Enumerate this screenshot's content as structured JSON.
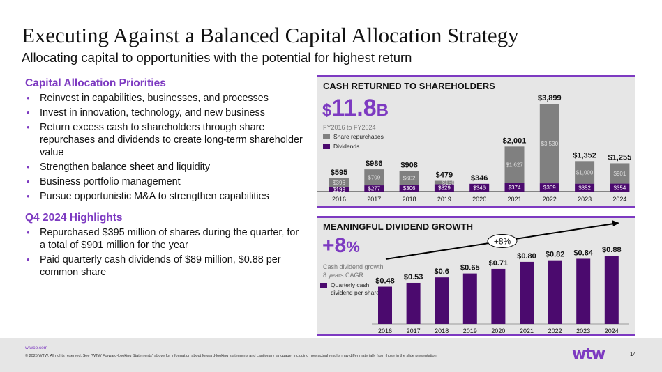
{
  "header": {
    "title": "Executing Against a Balanced Capital Allocation Strategy",
    "subtitle": "Allocating capital to opportunities with the potential for highest return"
  },
  "priorities": {
    "heading": "Capital Allocation Priorities",
    "items": [
      "Reinvest in capabilities, businesses, and processes",
      "Invest in innovation, technology, and new business",
      "Return excess cash to shareholders through share repurchases and dividends to create long-term shareholder value",
      "Strengthen balance sheet and liquidity",
      "Business portfolio management",
      "Pursue opportunistic M&A to strengthen capabilities"
    ]
  },
  "highlights": {
    "heading": "Q4 2024 Highlights",
    "items": [
      "Repurchased $395 million of shares during the quarter, for a total of $901 million for the year",
      "Paid quarterly cash dividends of $89 million, $0.88 per common share"
    ]
  },
  "cash_panel": {
    "big_currency": "$",
    "big_number": "11.8",
    "big_unit": "B",
    "note": "FY2016 to FY2024"
  },
  "dividend_panel": {
    "big_number": "+8",
    "big_unit": "%",
    "note_line1": "Cash dividend growth",
    "note_line2": "8 years CAGR",
    "legend_line1": "Quarterly cash",
    "legend_line2": "dividend per share",
    "growth_badge": "+8%"
  },
  "colors": {
    "accent": "#7d3ac1",
    "dividend_bar": "#4b0a6e",
    "repurchase_bar": "#808080",
    "panel_bg": "#e6e6e6"
  },
  "chart_data": [
    {
      "type": "bar",
      "stacked": true,
      "title": "CASH RETURNED TO SHAREHOLDERS",
      "categories": [
        "2016",
        "2017",
        "2018",
        "2019",
        "2020",
        "2021",
        "2022",
        "2023",
        "2024"
      ],
      "series": [
        {
          "name": "Dividends",
          "color": "#4b0a6e",
          "values": [
            199,
            277,
            306,
            329,
            346,
            374,
            369,
            352,
            354
          ],
          "labels": [
            "$199",
            "$277",
            "$306",
            "$329",
            "$346",
            "$374",
            "$369",
            "$352",
            "$354"
          ]
        },
        {
          "name": "Share repurchases",
          "color": "#808080",
          "values": [
            396,
            709,
            602,
            150,
            0,
            1627,
            3530,
            1000,
            901
          ],
          "labels": [
            "$396",
            "$709",
            "$602",
            "$150",
            "",
            "$1,627",
            "$3,530",
            "$1,000",
            "$901"
          ]
        }
      ],
      "totals": [
        "$595",
        "$986",
        "$908",
        "$479",
        "$346",
        "$2,001",
        "$3,899",
        "$1,352",
        "$1,255"
      ],
      "legend": [
        "Share repurchases",
        "Dividends"
      ],
      "legend_position": "top-left",
      "ylabel": "",
      "xlabel": "",
      "units": "$ millions",
      "ylim": [
        0,
        3899
      ],
      "grid": false
    },
    {
      "type": "bar",
      "title": "MEANINGFUL DIVIDEND GROWTH",
      "categories": [
        "2016",
        "2017",
        "2018",
        "2019",
        "2020",
        "2021",
        "2022",
        "2023",
        "2024"
      ],
      "values": [
        0.48,
        0.53,
        0.6,
        0.65,
        0.71,
        0.8,
        0.82,
        0.84,
        0.88
      ],
      "labels": [
        "$0.48",
        "$0.53",
        "$0.6",
        "$0.65",
        "$0.71",
        "$0.80",
        "$0.82",
        "$0.84",
        "$0.88"
      ],
      "legend": [
        "Quarterly cash dividend per share"
      ],
      "legend_position": "left",
      "annotation": "+8%",
      "ylim": [
        0,
        0.88
      ],
      "grid": false
    }
  ],
  "footer": {
    "url": "wtwco.com",
    "legal": "© 2025 WTW. All rights reserved. See \"WTW Forward-Looking Statements\" above for information about forward-looking statements and cautionary language, including how actual results may differ materially from those in the slide presentation.",
    "logo": "wtw",
    "page_number": "14"
  }
}
